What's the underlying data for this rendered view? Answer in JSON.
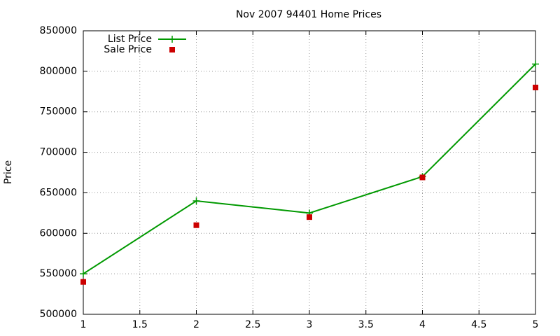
{
  "chart_data": {
    "type": "line",
    "title": "Nov 2007 94401 Home Prices",
    "y_label": "Price",
    "x": [
      1,
      2,
      3,
      4,
      5
    ],
    "series": [
      {
        "name": "List Price",
        "color": "#009900",
        "style": "linespoints",
        "values": [
          550000,
          640000,
          625000,
          670000,
          809000
        ]
      },
      {
        "name": "Sale Price",
        "color": "#cc0000",
        "style": "points",
        "values": [
          540000,
          610000,
          620000,
          669000,
          780000
        ]
      }
    ],
    "xlim": [
      1,
      5
    ],
    "xticks": [
      1,
      1.5,
      2,
      2.5,
      3,
      3.5,
      4,
      4.5,
      5
    ],
    "ylim": [
      500000,
      850000
    ],
    "yticks": [
      500000,
      550000,
      600000,
      650000,
      700000,
      750000,
      800000,
      850000
    ],
    "grid": true,
    "legend": "top-left"
  }
}
